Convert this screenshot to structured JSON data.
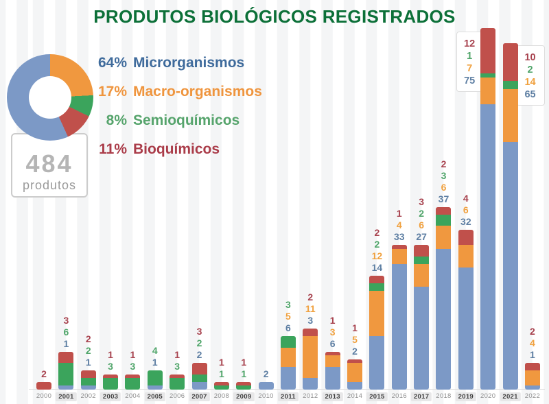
{
  "title": "PRODUTOS BIOLÓGICOS REGISTRADOS",
  "summary": {
    "value": "484",
    "label": "produtos"
  },
  "legend": [
    {
      "pct": "64%",
      "label": "Microrganismos",
      "color": "#3f6b9c"
    },
    {
      "pct": "17%",
      "label": "Macro-organismos",
      "color": "#ef953e"
    },
    {
      "pct": "8%",
      "label": "Semioquímicos",
      "color": "#56a46c"
    },
    {
      "pct": "11%",
      "label": "Bioquímicos",
      "color": "#aa3c49"
    }
  ],
  "chart_data": {
    "type": "bar",
    "stacked": true,
    "title": "PRODUTOS BIOLÓGICOS REGISTRADOS",
    "xlabel": "",
    "ylabel": "",
    "ylim": [
      0,
      95
    ],
    "grid": "vertical-stripes",
    "legend_position": "top-left",
    "categories": [
      2000,
      2001,
      2002,
      2003,
      2004,
      2005,
      2006,
      2007,
      2008,
      2009,
      2010,
      2011,
      2012,
      2013,
      2014,
      2015,
      2016,
      2017,
      2018,
      2019,
      2020,
      2021,
      2022
    ],
    "series": [
      {
        "name": "Microrganismos",
        "color": "#7c99c6",
        "label_color": "#5e7fa3",
        "values": [
          0,
          1,
          1,
          0,
          0,
          1,
          0,
          2,
          0,
          0,
          2,
          6,
          3,
          6,
          2,
          14,
          33,
          27,
          37,
          32,
          75,
          65,
          1
        ]
      },
      {
        "name": "Macro-organismos",
        "color": "#f0983f",
        "label_color": "#f0a13f",
        "values": [
          0,
          0,
          0,
          0,
          0,
          0,
          0,
          0,
          0,
          0,
          0,
          5,
          11,
          3,
          5,
          12,
          4,
          6,
          6,
          6,
          7,
          14,
          4
        ]
      },
      {
        "name": "Semioquímicos",
        "color": "#3ba45c",
        "label_color": "#50a56a",
        "values": [
          0,
          6,
          2,
          3,
          3,
          4,
          3,
          2,
          1,
          1,
          0,
          3,
          0,
          0,
          0,
          2,
          0,
          2,
          3,
          0,
          1,
          2,
          0
        ]
      },
      {
        "name": "Bioquímicos",
        "color": "#c0504b",
        "label_color": "#a8434f",
        "values": [
          2,
          3,
          2,
          1,
          1,
          0,
          1,
          3,
          1,
          1,
          0,
          0,
          2,
          1,
          1,
          2,
          1,
          3,
          2,
          4,
          12,
          10,
          2
        ]
      }
    ],
    "donut": {
      "start_deg": 26,
      "segments": [
        {
          "label": "Macro-organismos",
          "pct": 17,
          "color": "#f0983f"
        },
        {
          "label": "Semioquímicos",
          "pct": 8,
          "color": "#3ba45c"
        },
        {
          "label": "Bioquímicos",
          "pct": 11,
          "color": "#c0504b"
        },
        {
          "label": "Microrganismos",
          "pct": 64,
          "color": "#7c99c6"
        }
      ],
      "total": 484
    }
  }
}
